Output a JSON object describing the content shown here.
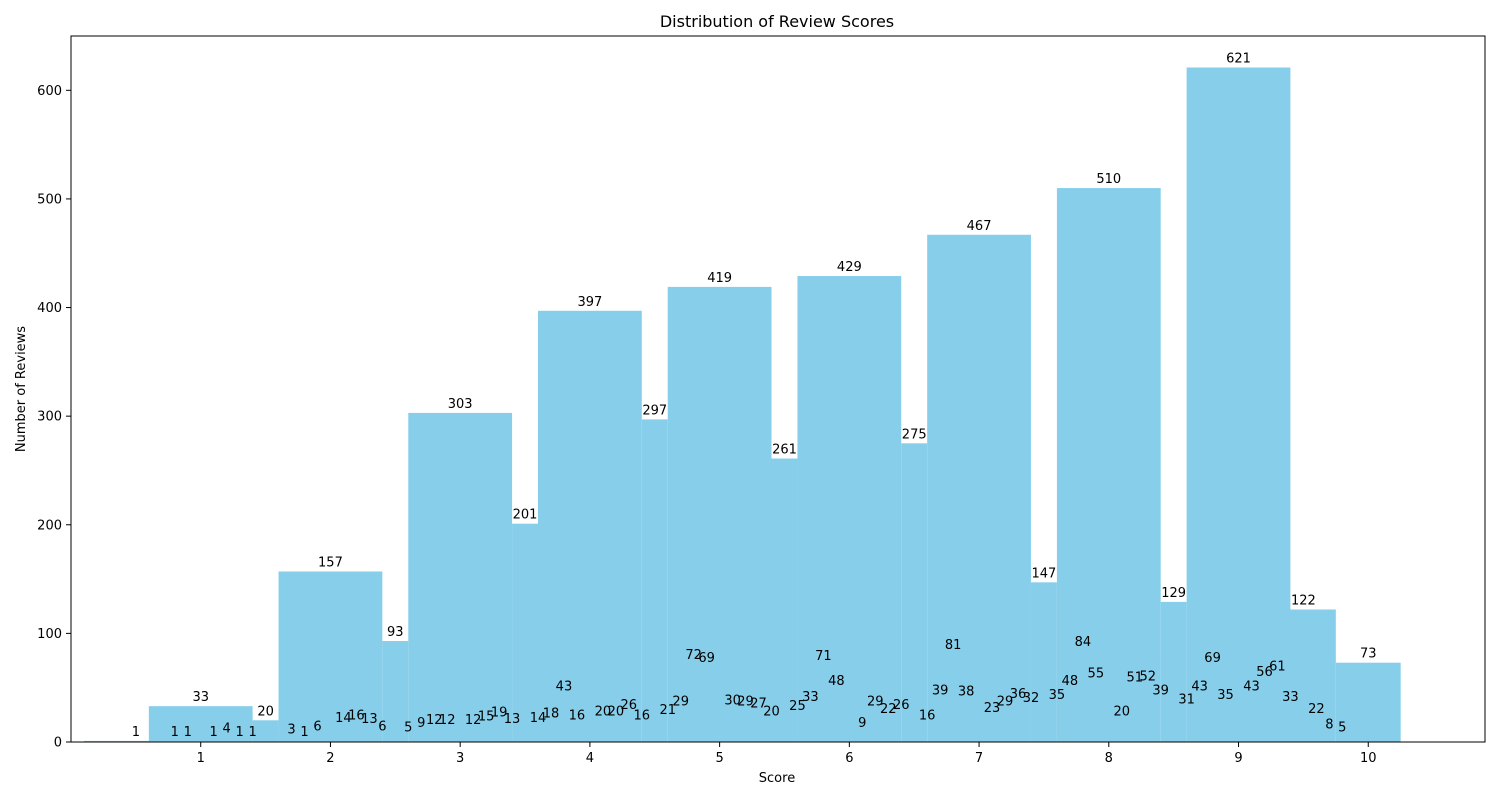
{
  "colors": {
    "bar": "#87CEEB",
    "axis": "#000000",
    "background": "#ffffff"
  },
  "chart_data": {
    "type": "bar",
    "title": "Distribution of Review Scores",
    "xlabel": "Score",
    "ylabel": "Number of Reviews",
    "xlim": [
      0,
      10.9
    ],
    "ylim": [
      0,
      650
    ],
    "xticks": [
      1,
      2,
      3,
      4,
      5,
      6,
      7,
      8,
      9,
      10
    ],
    "yticks": [
      0,
      100,
      200,
      300,
      400,
      500,
      600
    ],
    "grid": false,
    "bars": [
      {
        "x": 0.5,
        "width": 0.8,
        "value": 1
      },
      {
        "x": 1.0,
        "width": 0.8,
        "value": 33
      },
      {
        "x": 1.5,
        "width": 0.2,
        "value": 20
      },
      {
        "x": 2.0,
        "width": 0.8,
        "value": 157
      },
      {
        "x": 2.5,
        "width": 0.2,
        "value": 93
      },
      {
        "x": 3.0,
        "width": 0.8,
        "value": 303
      },
      {
        "x": 3.5,
        "width": 0.2,
        "value": 201
      },
      {
        "x": 4.0,
        "width": 0.8,
        "value": 397
      },
      {
        "x": 4.5,
        "width": 0.2,
        "value": 297
      },
      {
        "x": 5.0,
        "width": 0.8,
        "value": 419
      },
      {
        "x": 5.5,
        "width": 0.2,
        "value": 261
      },
      {
        "x": 6.0,
        "width": 0.8,
        "value": 429
      },
      {
        "x": 6.5,
        "width": 0.2,
        "value": 275
      },
      {
        "x": 7.0,
        "width": 0.8,
        "value": 467
      },
      {
        "x": 7.5,
        "width": 0.2,
        "value": 147
      },
      {
        "x": 8.0,
        "width": 0.8,
        "value": 510
      },
      {
        "x": 8.5,
        "width": 0.2,
        "value": 129
      },
      {
        "x": 9.0,
        "width": 0.8,
        "value": 621
      },
      {
        "x": 9.5,
        "width": 0.5,
        "value": 122
      },
      {
        "x": 10.0,
        "width": 0.5,
        "value": 73
      }
    ],
    "inner_labels": [
      {
        "x": 0.8,
        "value": 1
      },
      {
        "x": 0.9,
        "value": 1
      },
      {
        "x": 1.1,
        "value": 1
      },
      {
        "x": 1.2,
        "value": 4
      },
      {
        "x": 1.3,
        "value": 1
      },
      {
        "x": 1.4,
        "value": 1
      },
      {
        "x": 1.7,
        "value": 3
      },
      {
        "x": 1.8,
        "value": 1
      },
      {
        "x": 1.9,
        "value": 6
      },
      {
        "x": 2.1,
        "value": 14
      },
      {
        "x": 2.2,
        "value": 16
      },
      {
        "x": 2.3,
        "value": 13
      },
      {
        "x": 2.4,
        "value": 6
      },
      {
        "x": 2.6,
        "value": 5
      },
      {
        "x": 2.7,
        "value": 9
      },
      {
        "x": 2.8,
        "value": 12
      },
      {
        "x": 2.9,
        "value": 12
      },
      {
        "x": 3.1,
        "value": 12
      },
      {
        "x": 3.2,
        "value": 15
      },
      {
        "x": 3.3,
        "value": 19
      },
      {
        "x": 3.4,
        "value": 13
      },
      {
        "x": 3.6,
        "value": 14
      },
      {
        "x": 3.7,
        "value": 18
      },
      {
        "x": 3.8,
        "value": 43
      },
      {
        "x": 3.9,
        "value": 16
      },
      {
        "x": 4.1,
        "value": 20
      },
      {
        "x": 4.2,
        "value": 20
      },
      {
        "x": 4.3,
        "value": 26
      },
      {
        "x": 4.4,
        "value": 16
      },
      {
        "x": 4.6,
        "value": 21
      },
      {
        "x": 4.7,
        "value": 29
      },
      {
        "x": 4.8,
        "value": 72
      },
      {
        "x": 4.9,
        "value": 69
      },
      {
        "x": 5.1,
        "value": 30
      },
      {
        "x": 5.2,
        "value": 29
      },
      {
        "x": 5.3,
        "value": 27
      },
      {
        "x": 5.4,
        "value": 20
      },
      {
        "x": 5.6,
        "value": 25
      },
      {
        "x": 5.7,
        "value": 33
      },
      {
        "x": 5.8,
        "value": 71
      },
      {
        "x": 5.9,
        "value": 48
      },
      {
        "x": 6.1,
        "value": 9
      },
      {
        "x": 6.2,
        "value": 29
      },
      {
        "x": 6.3,
        "value": 22
      },
      {
        "x": 6.4,
        "value": 26
      },
      {
        "x": 6.6,
        "value": 16
      },
      {
        "x": 6.7,
        "value": 39
      },
      {
        "x": 6.8,
        "value": 81
      },
      {
        "x": 6.9,
        "value": 38
      },
      {
        "x": 7.1,
        "value": 23
      },
      {
        "x": 7.2,
        "value": 29
      },
      {
        "x": 7.3,
        "value": 36
      },
      {
        "x": 7.4,
        "value": 32
      },
      {
        "x": 7.6,
        "value": 35
      },
      {
        "x": 7.7,
        "value": 48
      },
      {
        "x": 7.8,
        "value": 84
      },
      {
        "x": 7.9,
        "value": 55
      },
      {
        "x": 8.1,
        "value": 20
      },
      {
        "x": 8.2,
        "value": 51
      },
      {
        "x": 8.3,
        "value": 52
      },
      {
        "x": 8.4,
        "value": 39
      },
      {
        "x": 8.6,
        "value": 31
      },
      {
        "x": 8.7,
        "value": 43
      },
      {
        "x": 8.8,
        "value": 69
      },
      {
        "x": 8.9,
        "value": 35
      },
      {
        "x": 9.1,
        "value": 43
      },
      {
        "x": 9.2,
        "value": 56
      },
      {
        "x": 9.3,
        "value": 61
      },
      {
        "x": 9.4,
        "value": 33
      },
      {
        "x": 9.6,
        "value": 22
      },
      {
        "x": 9.7,
        "value": 8
      },
      {
        "x": 9.8,
        "value": 5
      }
    ]
  }
}
